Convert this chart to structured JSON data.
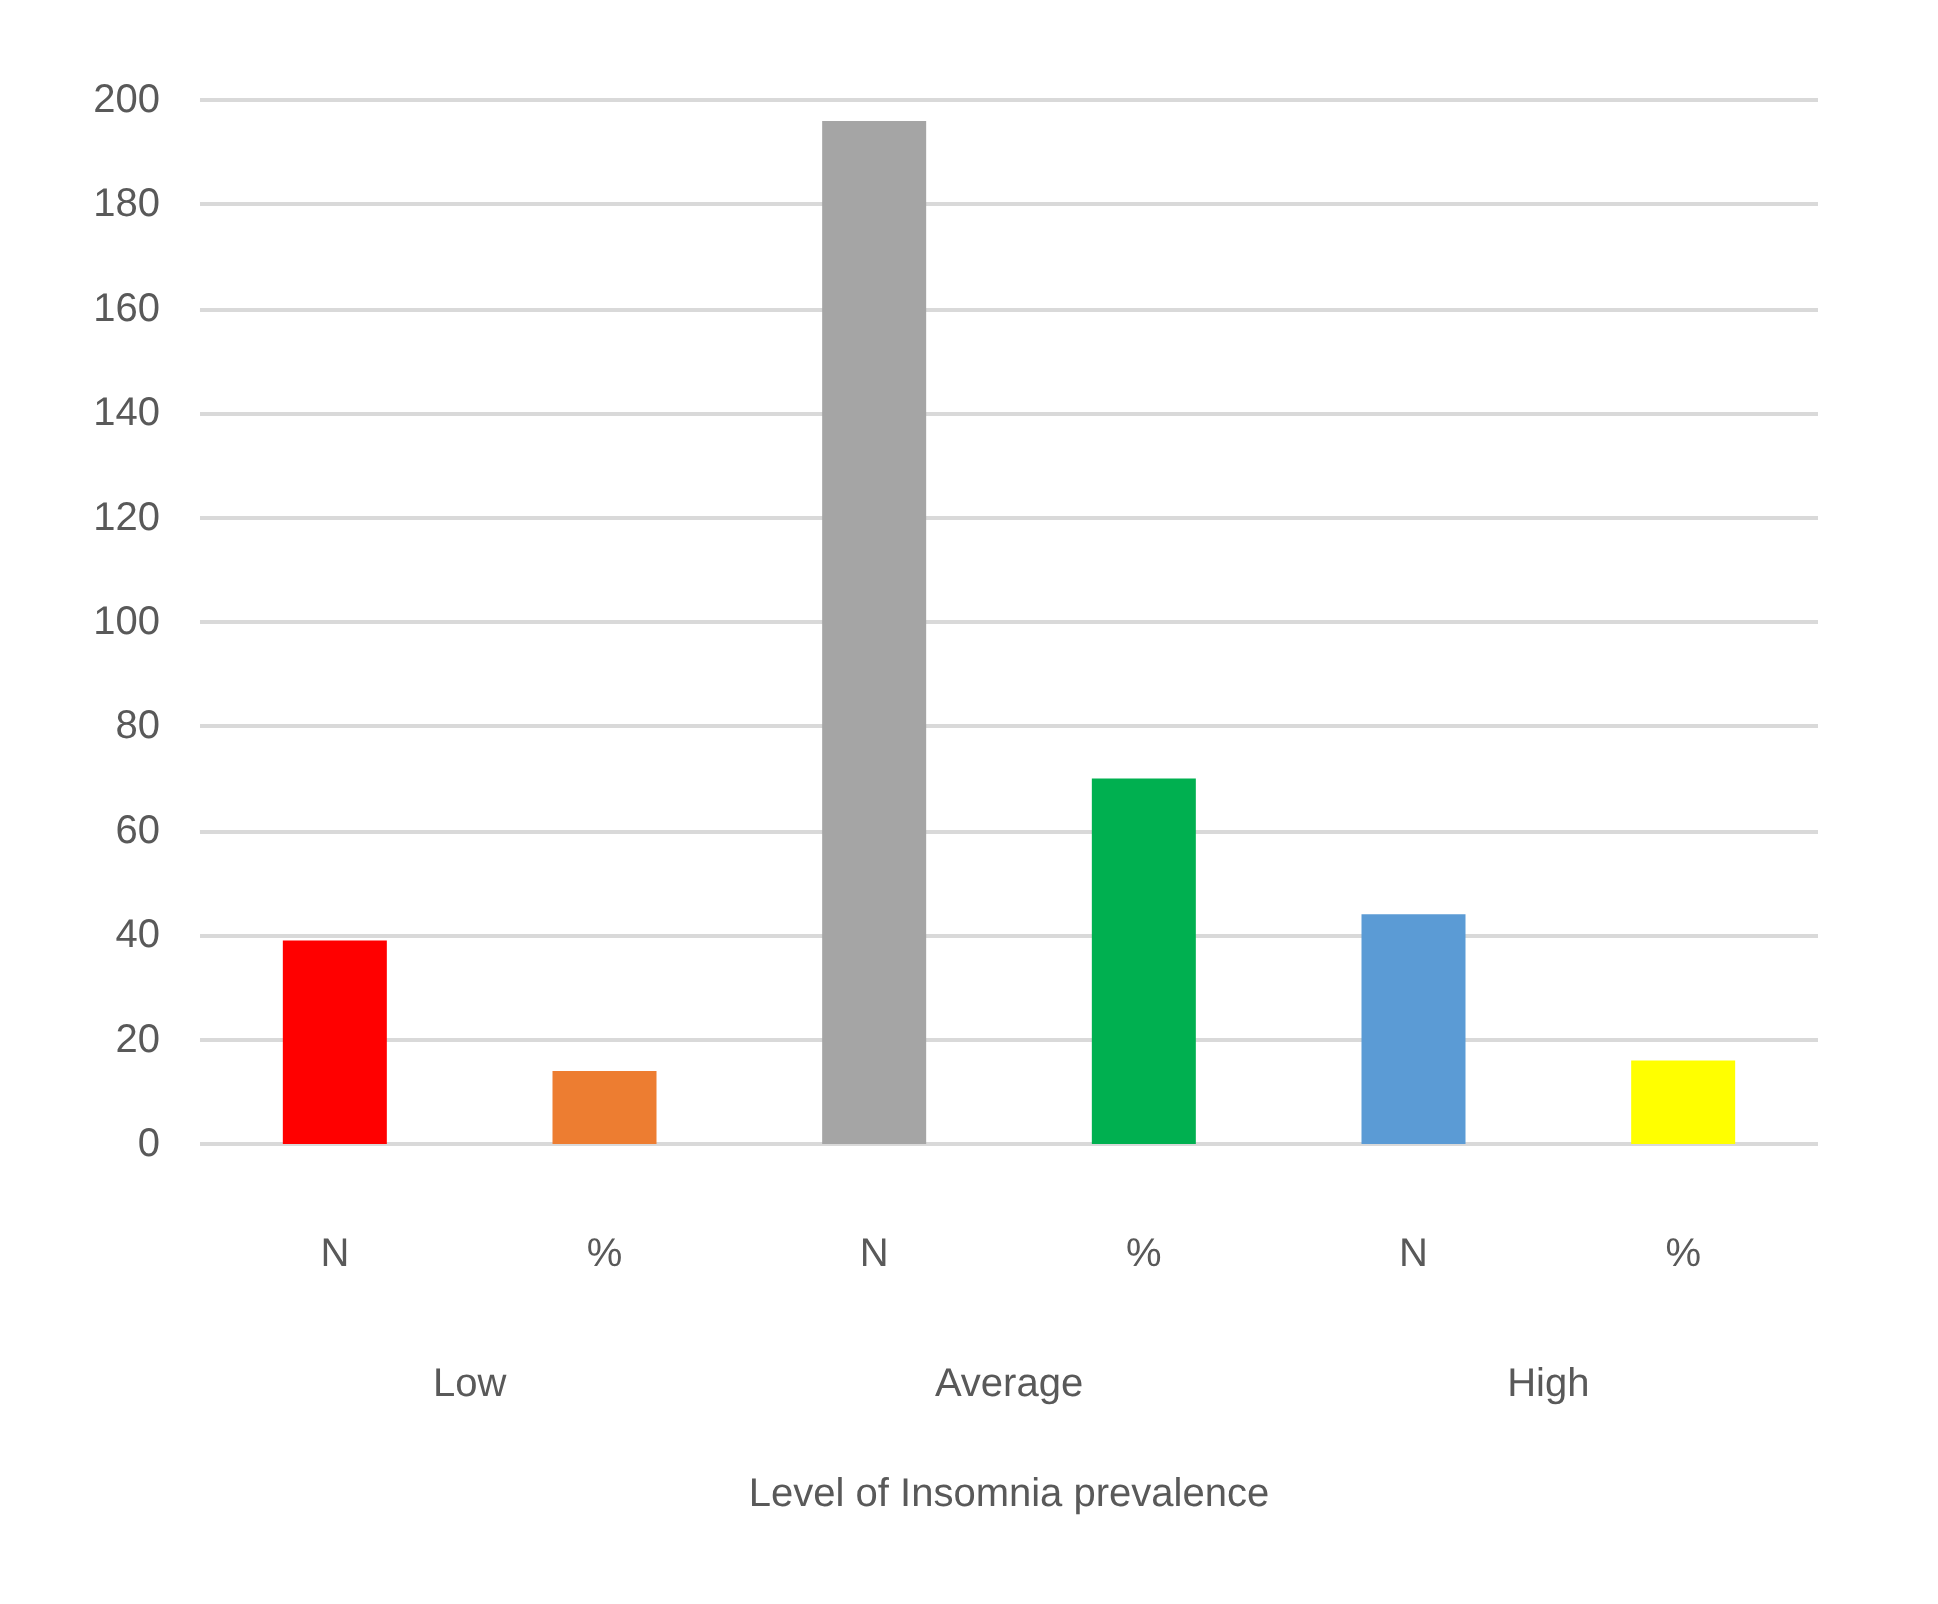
{
  "chart_data": {
    "type": "bar",
    "xlabel": "Level of Insomnia prevalence",
    "categories": [
      "N",
      "%",
      "N",
      "%",
      "N",
      "%"
    ],
    "values": [
      39,
      14,
      196,
      70,
      44,
      16
    ],
    "colors": [
      "#ff0000",
      "#ed7d31",
      "#a5a5a5",
      "#00b050",
      "#5b9bd5",
      "#ffff00"
    ],
    "ylim": [
      0,
      200
    ],
    "yticks": [
      0,
      20,
      40,
      60,
      80,
      100,
      120,
      140,
      160,
      180,
      200
    ],
    "grid": "y",
    "annotations": [
      "Low",
      "Average",
      "High"
    ]
  }
}
